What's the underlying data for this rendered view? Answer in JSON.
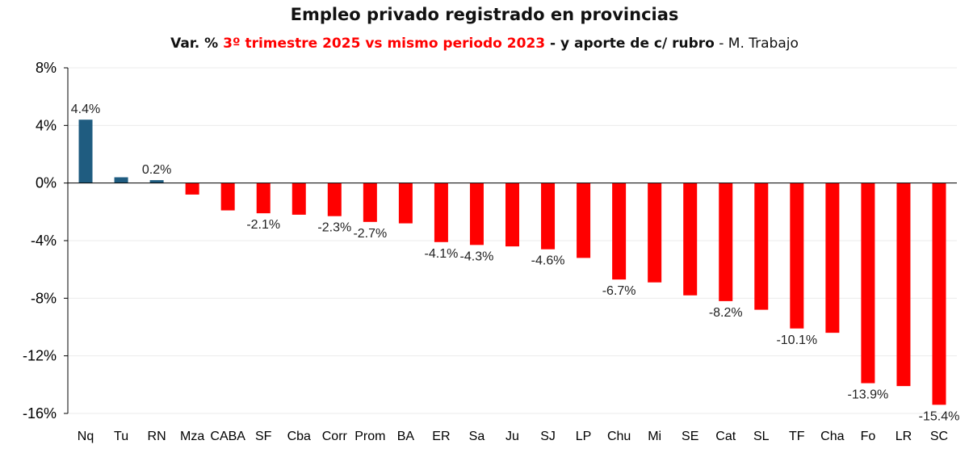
{
  "header": {
    "title": "Empleo privado registrado en provincias",
    "subtitle_part1": "Var. % ",
    "subtitle_part2": "3º trimestre 2025 vs mismo periodo 2023",
    "subtitle_part3": " - y aporte de c/ rubro",
    "subtitle_part4": " - M. Trabajo"
  },
  "colors": {
    "positive": "#1f5c80",
    "negative": "#ff0000",
    "subtitle_highlight": "#ff0000"
  },
  "chart_data": {
    "type": "bar",
    "title": "Empleo privado registrado en provincias",
    "subtitle": "Var. % 3º trimestre 2025 vs mismo periodo 2023 - y aporte de c/ rubro - M. Trabajo",
    "xlabel": "",
    "ylabel": "",
    "ylim": [
      -16,
      8
    ],
    "yticks": [
      8,
      4,
      0,
      -4,
      -8,
      -12,
      -16
    ],
    "ytick_labels": [
      "8%",
      "4%",
      "0%",
      "-4%",
      "-8%",
      "-12%",
      "-16%"
    ],
    "grid": true,
    "legend": "none",
    "categories": [
      "Nq",
      "Tu",
      "RN",
      "Mza",
      "CABA",
      "SF",
      "Cba",
      "Corr",
      "Prom",
      "BA",
      "ER",
      "Sa",
      "Ju",
      "SJ",
      "LP",
      "Chu",
      "Mi",
      "SE",
      "Cat",
      "SL",
      "TF",
      "Cha",
      "Fo",
      "LR",
      "SC"
    ],
    "values": [
      4.4,
      0.4,
      0.2,
      -0.8,
      -1.9,
      -2.1,
      -2.2,
      -2.3,
      -2.7,
      -2.8,
      -4.1,
      -4.3,
      -4.4,
      -4.6,
      -5.2,
      -6.7,
      -6.9,
      -7.8,
      -8.2,
      -8.8,
      -10.1,
      -10.4,
      -13.9,
      -14.1,
      -15.4
    ],
    "data_labels": [
      "4.4%",
      "",
      "0.2%",
      "",
      "",
      "-2.1%",
      "",
      "-2.3%",
      "-2.7%",
      "",
      "-4.1%",
      "-4.3%",
      "",
      "-4.6%",
      "",
      "-6.7%",
      "",
      "",
      "-8.2%",
      "",
      "-10.1%",
      "",
      "-13.9%",
      "",
      "-15.4%"
    ]
  }
}
